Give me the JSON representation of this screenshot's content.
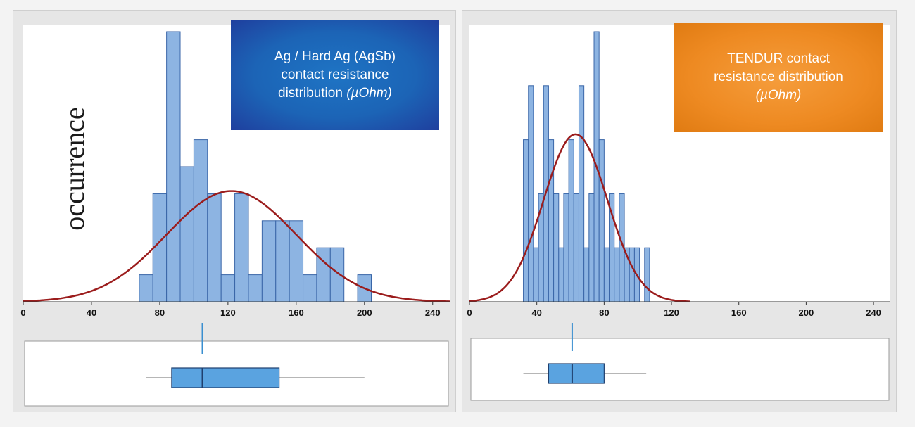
{
  "chart_data": [
    {
      "type": "histogram",
      "title_lines": [
        "Ag / Hard Ag (AgSb)",
        "contact resistance",
        "distribution"
      ],
      "unit": "(µOhm)",
      "ylabel": "occurrence",
      "xlim": [
        0,
        250
      ],
      "ylim": [
        0,
        10
      ],
      "x_ticks": [
        0,
        40,
        80,
        120,
        160,
        200,
        240
      ],
      "bin_width": 8,
      "bins": [
        {
          "x": 68,
          "count": 1
        },
        {
          "x": 76,
          "count": 4
        },
        {
          "x": 84,
          "count": 10
        },
        {
          "x": 92,
          "count": 5
        },
        {
          "x": 100,
          "count": 6
        },
        {
          "x": 108,
          "count": 4
        },
        {
          "x": 116,
          "count": 1
        },
        {
          "x": 124,
          "count": 4
        },
        {
          "x": 132,
          "count": 1
        },
        {
          "x": 140,
          "count": 3
        },
        {
          "x": 148,
          "count": 3
        },
        {
          "x": 156,
          "count": 3
        },
        {
          "x": 164,
          "count": 1
        },
        {
          "x": 172,
          "count": 2
        },
        {
          "x": 180,
          "count": 2
        },
        {
          "x": 196,
          "count": 1
        }
      ],
      "fit": {
        "mean": 122,
        "sd": 38,
        "peak": 4.1
      },
      "boxplot": {
        "min": 72,
        "q1": 87,
        "median": 105,
        "q3": 150,
        "max": 200
      },
      "colors": {
        "bar": "#8db4e2",
        "bar_edge": "#3a66a8",
        "curve": "#9b1c1c",
        "box": "#5aa3e0"
      }
    },
    {
      "type": "histogram",
      "title_lines": [
        "TENDUR contact",
        "resistance distribution"
      ],
      "unit": "(µOhm)",
      "ylabel": "",
      "xlim": [
        0,
        250
      ],
      "ylim": [
        0,
        10
      ],
      "x_ticks": [
        0,
        40,
        80,
        120,
        160,
        200,
        240
      ],
      "bin_width": 3,
      "bins": [
        {
          "x": 32,
          "count": 6
        },
        {
          "x": 35,
          "count": 8
        },
        {
          "x": 38,
          "count": 2
        },
        {
          "x": 41,
          "count": 4
        },
        {
          "x": 44,
          "count": 8
        },
        {
          "x": 47,
          "count": 6
        },
        {
          "x": 50,
          "count": 4
        },
        {
          "x": 53,
          "count": 2
        },
        {
          "x": 56,
          "count": 4
        },
        {
          "x": 59,
          "count": 6
        },
        {
          "x": 62,
          "count": 4
        },
        {
          "x": 65,
          "count": 8
        },
        {
          "x": 68,
          "count": 2
        },
        {
          "x": 71,
          "count": 4
        },
        {
          "x": 74,
          "count": 10
        },
        {
          "x": 77,
          "count": 6
        },
        {
          "x": 80,
          "count": 2
        },
        {
          "x": 83,
          "count": 4
        },
        {
          "x": 86,
          "count": 2
        },
        {
          "x": 89,
          "count": 4
        },
        {
          "x": 92,
          "count": 2
        },
        {
          "x": 95,
          "count": 2
        },
        {
          "x": 98,
          "count": 2
        },
        {
          "x": 104,
          "count": 2
        }
      ],
      "fit": {
        "mean": 63,
        "sd": 19,
        "peak": 6.2
      },
      "boxplot": {
        "min": 32,
        "q1": 47,
        "median": 61,
        "q3": 80,
        "max": 105
      },
      "colors": {
        "bar": "#8db4e2",
        "bar_edge": "#3a66a8",
        "curve": "#9b1c1c",
        "box": "#5aa3e0"
      }
    }
  ]
}
